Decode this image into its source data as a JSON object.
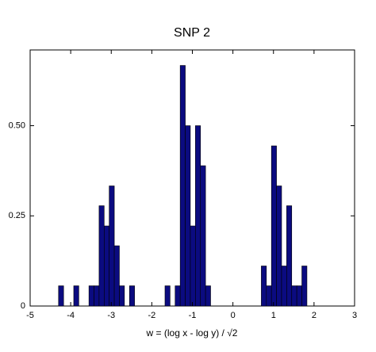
{
  "chart_data": {
    "type": "histogram",
    "title": "SNP 2",
    "x_label": "w = (log x - log y) / √2",
    "bins": [
      -4.3,
      -4.175,
      -4.05,
      -3.925,
      -3.8,
      -3.675,
      -3.55,
      -3.425,
      -3.3,
      -3.175,
      -3.05,
      -2.925,
      -2.8,
      -2.675,
      -2.55,
      -2.425,
      -2.3,
      -2.175,
      -2.05,
      -1.925,
      -1.8,
      -1.675,
      -1.55,
      -1.425,
      -1.3,
      -1.175,
      -1.05,
      -0.925,
      -0.8,
      -0.675,
      -0.55,
      -0.425,
      -0.3,
      -0.175,
      -0.05,
      0.075,
      0.2,
      0.325,
      0.45,
      0.575,
      0.7,
      0.825,
      0.95,
      1.075,
      1.2,
      1.325,
      1.45,
      1.575,
      1.7,
      1.825
    ],
    "values": [
      0.056,
      0,
      0,
      0.056,
      0,
      0,
      0.056,
      0.056,
      0.278,
      0.222,
      0.333,
      0.167,
      0.056,
      0,
      0.056,
      0,
      0,
      0,
      0,
      0,
      0,
      0.056,
      0,
      0.056,
      0.667,
      0.5,
      0.222,
      0.5,
      0.389,
      0.056,
      0,
      0,
      0,
      0,
      0,
      0,
      0,
      0,
      0,
      0,
      0.111,
      0.056,
      0.444,
      0.333,
      0.111,
      0.278,
      0.056,
      0.056,
      0.111
    ],
    "color": "#0b0b80",
    "xlim": [
      -5,
      3
    ],
    "xticks": [
      -5,
      -4,
      -3,
      -2,
      -1,
      0,
      1,
      2,
      3
    ],
    "ylim": [
      0,
      0.71
    ],
    "yticks": [
      0,
      0.25,
      {
        "value": 0.5,
        "label": "0.50"
      }
    ]
  }
}
